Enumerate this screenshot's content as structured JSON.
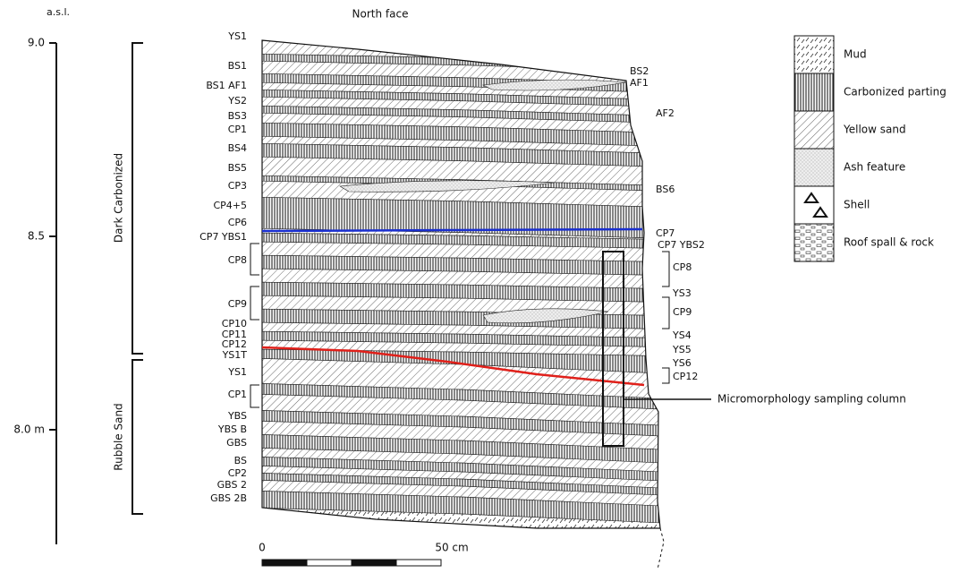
{
  "title": "North face",
  "axis": {
    "label": "a.s.l.",
    "ticks": [
      "9.0",
      "8.5",
      "8.0 m"
    ]
  },
  "groups": [
    "Dark Carbonized",
    "Rubble Sand"
  ],
  "left_labels": [
    "YS1",
    "BS1",
    "BS1 AF1",
    "YS2",
    "BS3",
    "CP1",
    "BS4",
    "BS5",
    "CP3",
    "CP4+5",
    "CP6",
    "CP7 YBS1",
    "CP8",
    "CP9",
    "CP10",
    "CP11",
    "CP12",
    "YS1T",
    "YS1",
    "CP1",
    "YBS",
    "YBS B",
    "GBS",
    "BS",
    "CP2",
    "GBS 2",
    "GBS 2B"
  ],
  "right_labels": [
    "BS2",
    "AF1",
    "AF2",
    "BS6",
    "CP7",
    "CP7 YBS2",
    "CP8",
    "YS3",
    "CP9",
    "YS4",
    "YS5",
    "YS6",
    "CP12"
  ],
  "annotation": "Micromorphology sampling column",
  "scale": {
    "start": "0",
    "end": "50 cm"
  },
  "legend": [
    "Mud",
    "Carbonized parting",
    "Yellow sand",
    "Ash feature",
    "Shell",
    "Roof spall & rock"
  ]
}
